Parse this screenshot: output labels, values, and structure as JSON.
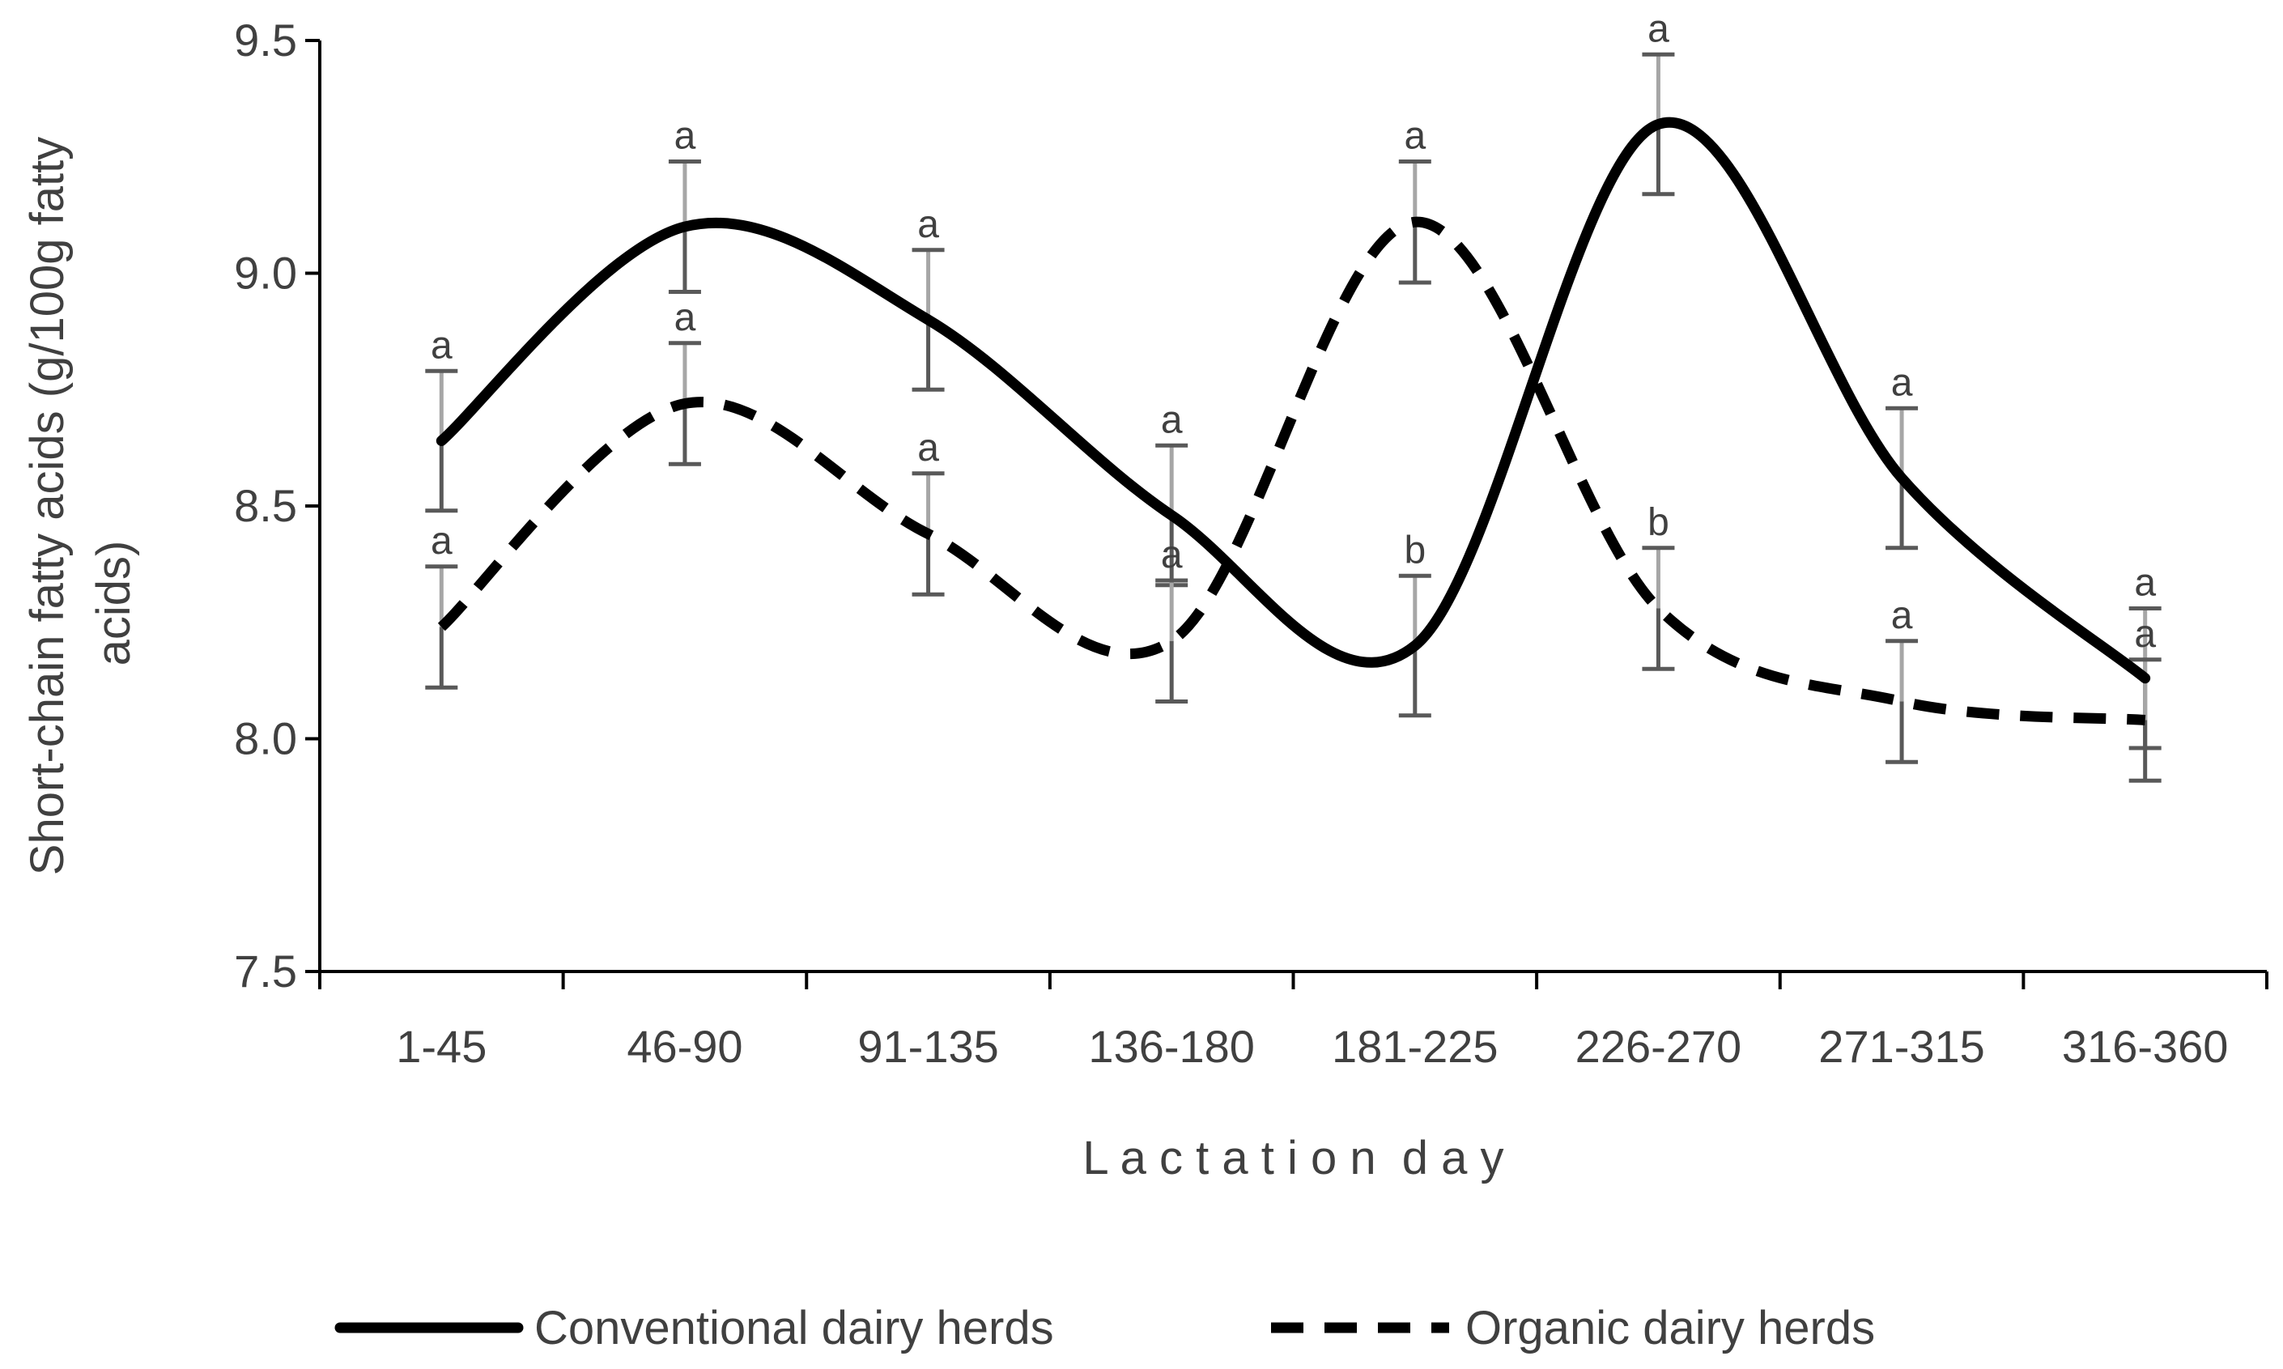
{
  "chart_data": {
    "type": "line",
    "xlabel": "L a c t a t i o n  d a y",
    "ylabel_lines": [
      "Short-chain fatty acids (g/100g fatty",
      "acids)"
    ],
    "ylim": [
      7.5,
      9.5
    ],
    "yticks": [
      7.5,
      8.0,
      8.5,
      9.0,
      9.5
    ],
    "ytick_labels": [
      "7.5",
      "8.0",
      "8.5",
      "9.0",
      "9.5"
    ],
    "categories": [
      "1-45",
      "46-90",
      "91-135",
      "136-180",
      "181-225",
      "226-270",
      "271-315",
      "316-360"
    ],
    "grid": false,
    "legend_position": "bottom",
    "series": [
      {
        "name": "Conventional dairy herds",
        "line_style": "solid",
        "values": [
          8.64,
          9.1,
          8.9,
          8.48,
          8.2,
          9.32,
          8.56,
          8.13
        ],
        "error": [
          0.15,
          0.14,
          0.15,
          0.15,
          0.15,
          0.15,
          0.15,
          0.15
        ],
        "labels": [
          "a",
          "a",
          "a",
          "a",
          "b",
          "a",
          "a",
          "a"
        ]
      },
      {
        "name": "Organic dairy herds",
        "line_style": "dashed",
        "values": [
          8.24,
          8.72,
          8.44,
          8.21,
          9.11,
          8.28,
          8.08,
          8.04
        ],
        "error": [
          0.13,
          0.13,
          0.13,
          0.13,
          0.13,
          0.13,
          0.13,
          0.13
        ],
        "labels": [
          "a",
          "a",
          "a",
          "a",
          "a",
          "b",
          "a",
          "a"
        ]
      }
    ]
  },
  "colors": {
    "line": "#000000",
    "error_bar_dark": "#595959",
    "error_bar_light": "#a6a6a6",
    "axis": "#000000",
    "text": "#404040"
  }
}
